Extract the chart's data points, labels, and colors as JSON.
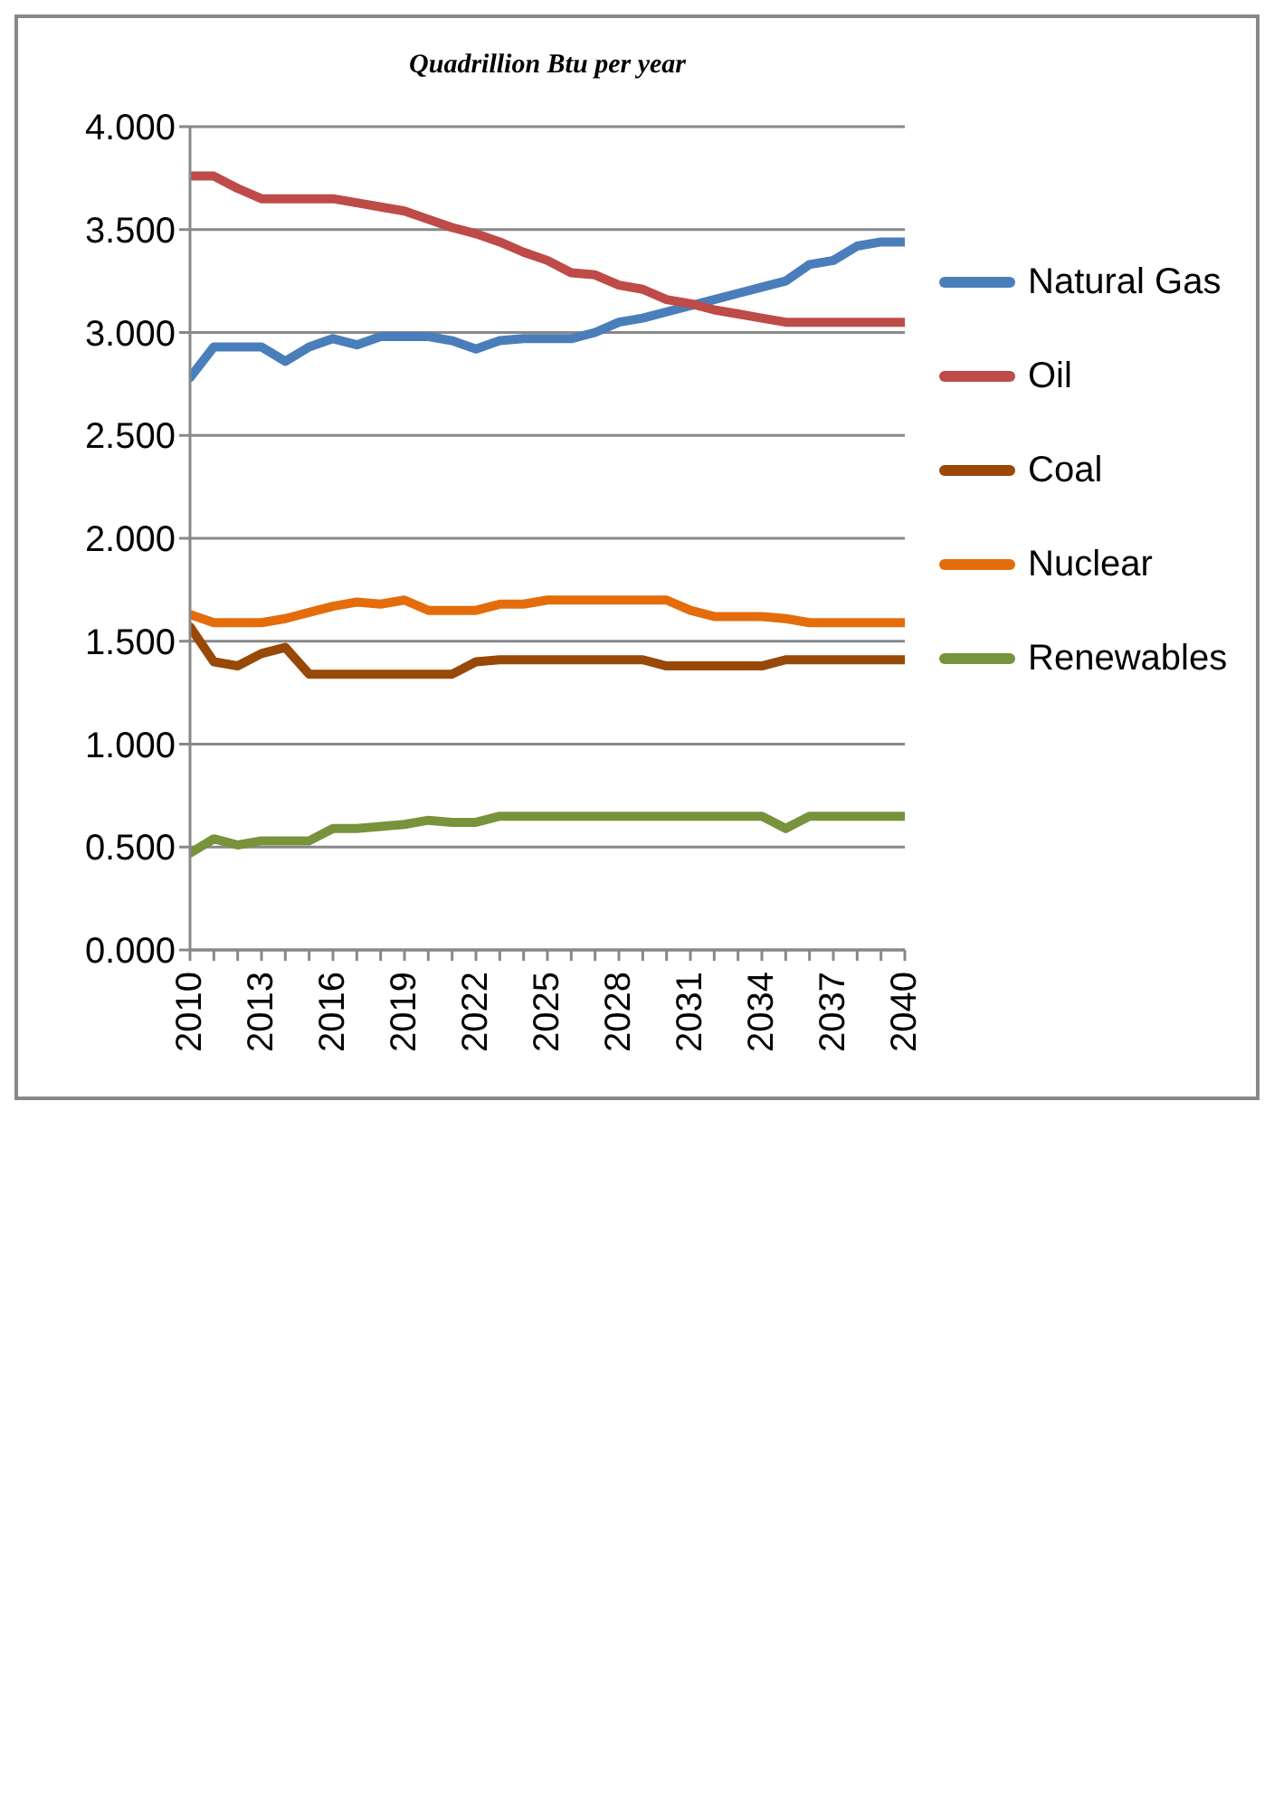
{
  "chart_data": {
    "type": "line",
    "title": "Quadrillion Btu per year",
    "x": [
      2010,
      2011,
      2012,
      2013,
      2014,
      2015,
      2016,
      2017,
      2018,
      2019,
      2020,
      2021,
      2022,
      2023,
      2024,
      2025,
      2026,
      2027,
      2028,
      2029,
      2030,
      2031,
      2032,
      2033,
      2034,
      2035,
      2036,
      2037,
      2038,
      2039,
      2040
    ],
    "xlim": [
      2010,
      2040
    ],
    "xticks": [
      2010,
      {
        "value": 2011,
        "label": null
      },
      {
        "value": 2012,
        "label": null
      },
      2013,
      {
        "value": 2014,
        "label": null
      },
      {
        "value": 2015,
        "label": null
      },
      2016,
      {
        "value": 2017,
        "label": null
      },
      {
        "value": 2018,
        "label": null
      },
      2019,
      {
        "value": 2020,
        "label": null
      },
      {
        "value": 2021,
        "label": null
      },
      2022,
      {
        "value": 2023,
        "label": null
      },
      {
        "value": 2024,
        "label": null
      },
      2025,
      {
        "value": 2026,
        "label": null
      },
      {
        "value": 2027,
        "label": null
      },
      2028,
      {
        "value": 2029,
        "label": null
      },
      {
        "value": 2030,
        "label": null
      },
      2031,
      {
        "value": 2032,
        "label": null
      },
      {
        "value": 2033,
        "label": null
      },
      2034,
      {
        "value": 2035,
        "label": null
      },
      {
        "value": 2036,
        "label": null
      },
      2037,
      {
        "value": 2038,
        "label": null
      },
      {
        "value": 2039,
        "label": null
      },
      2040
    ],
    "ylim": [
      0,
      4
    ],
    "yticks": [
      {
        "value": 0,
        "label": "0.000"
      },
      {
        "value": 0.5,
        "label": "0.500"
      },
      {
        "value": 1,
        "label": "1.000"
      },
      {
        "value": 1.5,
        "label": "1.500"
      },
      {
        "value": 2,
        "label": "2.000"
      },
      {
        "value": 2.5,
        "label": "2.500"
      },
      {
        "value": 3,
        "label": "3.000"
      },
      {
        "value": 3.5,
        "label": "3.500"
      },
      {
        "value": 4,
        "label": "4.000"
      }
    ],
    "grid": "y",
    "legend": "right",
    "marker": "none",
    "line_style": "solid",
    "series": [
      {
        "name": "Natural Gas",
        "color": "#4a7ebb",
        "values": [
          2.78,
          2.93,
          2.93,
          2.93,
          2.86,
          2.93,
          2.97,
          2.94,
          2.98,
          2.98,
          2.98,
          2.96,
          2.92,
          2.96,
          2.97,
          2.97,
          2.97,
          3.0,
          3.05,
          3.07,
          3.1,
          3.13,
          3.16,
          3.19,
          3.22,
          3.25,
          3.33,
          3.35,
          3.42,
          3.44,
          3.44
        ]
      },
      {
        "name": "Oil",
        "color": "#be4b48",
        "values": [
          3.76,
          3.76,
          3.7,
          3.65,
          3.65,
          3.65,
          3.65,
          3.63,
          3.61,
          3.59,
          3.55,
          3.51,
          3.48,
          3.44,
          3.39,
          3.35,
          3.29,
          3.28,
          3.23,
          3.21,
          3.16,
          3.14,
          3.11,
          3.09,
          3.07,
          3.05,
          3.05,
          3.05,
          3.05,
          3.05,
          3.05
        ]
      },
      {
        "name": "Coal",
        "color": "#984807",
        "values": [
          1.57,
          1.4,
          1.38,
          1.44,
          1.47,
          1.34,
          1.34,
          1.34,
          1.34,
          1.34,
          1.34,
          1.34,
          1.4,
          1.41,
          1.41,
          1.41,
          1.41,
          1.41,
          1.41,
          1.41,
          1.38,
          1.38,
          1.38,
          1.38,
          1.38,
          1.41,
          1.41,
          1.41,
          1.41,
          1.41,
          1.41
        ]
      },
      {
        "name": "Nuclear",
        "color": "#e46c0a",
        "values": [
          1.63,
          1.59,
          1.59,
          1.59,
          1.61,
          1.64,
          1.67,
          1.69,
          1.68,
          1.7,
          1.65,
          1.65,
          1.65,
          1.68,
          1.68,
          1.7,
          1.7,
          1.7,
          1.7,
          1.7,
          1.7,
          1.65,
          1.62,
          1.62,
          1.62,
          1.61,
          1.59,
          1.59,
          1.59,
          1.59,
          1.59
        ]
      },
      {
        "name": "Renewables",
        "color": "#77933c",
        "values": [
          0.47,
          0.54,
          0.51,
          0.53,
          0.53,
          0.53,
          0.59,
          0.59,
          0.6,
          0.61,
          0.63,
          0.62,
          0.62,
          0.65,
          0.65,
          0.65,
          0.65,
          0.65,
          0.65,
          0.65,
          0.65,
          0.65,
          0.65,
          0.65,
          0.65,
          0.59,
          0.65,
          0.65,
          0.65,
          0.65,
          0.65
        ]
      }
    ]
  }
}
